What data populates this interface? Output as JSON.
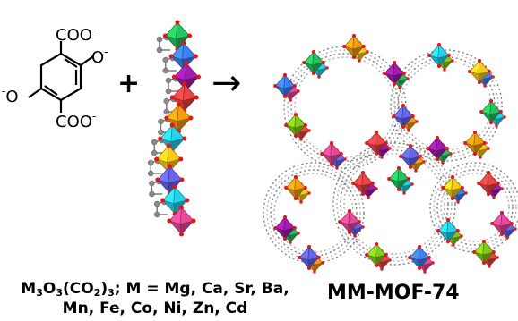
{
  "colors": {
    "oxygen": "#ee1111",
    "carbon": "#8a8a8a",
    "polyhedra": [
      "#22c55e",
      "#3b82f6",
      "#ef4444",
      "#f59e0b",
      "#22d3ee",
      "#ec4899",
      "#a21caf",
      "#facc15",
      "#84cc16",
      "#6366f1"
    ]
  },
  "linker": {
    "top_group": "COO",
    "top_group_charge": "-",
    "bottom_group": "COO",
    "bottom_group_charge": "-",
    "right_oxygen": "O",
    "right_oxygen_charge": "-",
    "left_oxygen": "O",
    "left_oxygen_charge": "-"
  },
  "operators": {
    "plus": "+",
    "arrow": "→"
  },
  "caption": {
    "sbu_formula": {
      "m": "M",
      "m_sub": "3",
      "o": "O",
      "o_sub": "3",
      "co2": "(CO",
      "co2_sub": "2",
      "close": ")",
      "close_sub": "3",
      "line1_rest": "; M = Mg, Ca, Sr, Ba,",
      "line2": "Mn, Fe, Co, Ni, Zn, Cd"
    },
    "product_name": "MM-MOF-74"
  }
}
